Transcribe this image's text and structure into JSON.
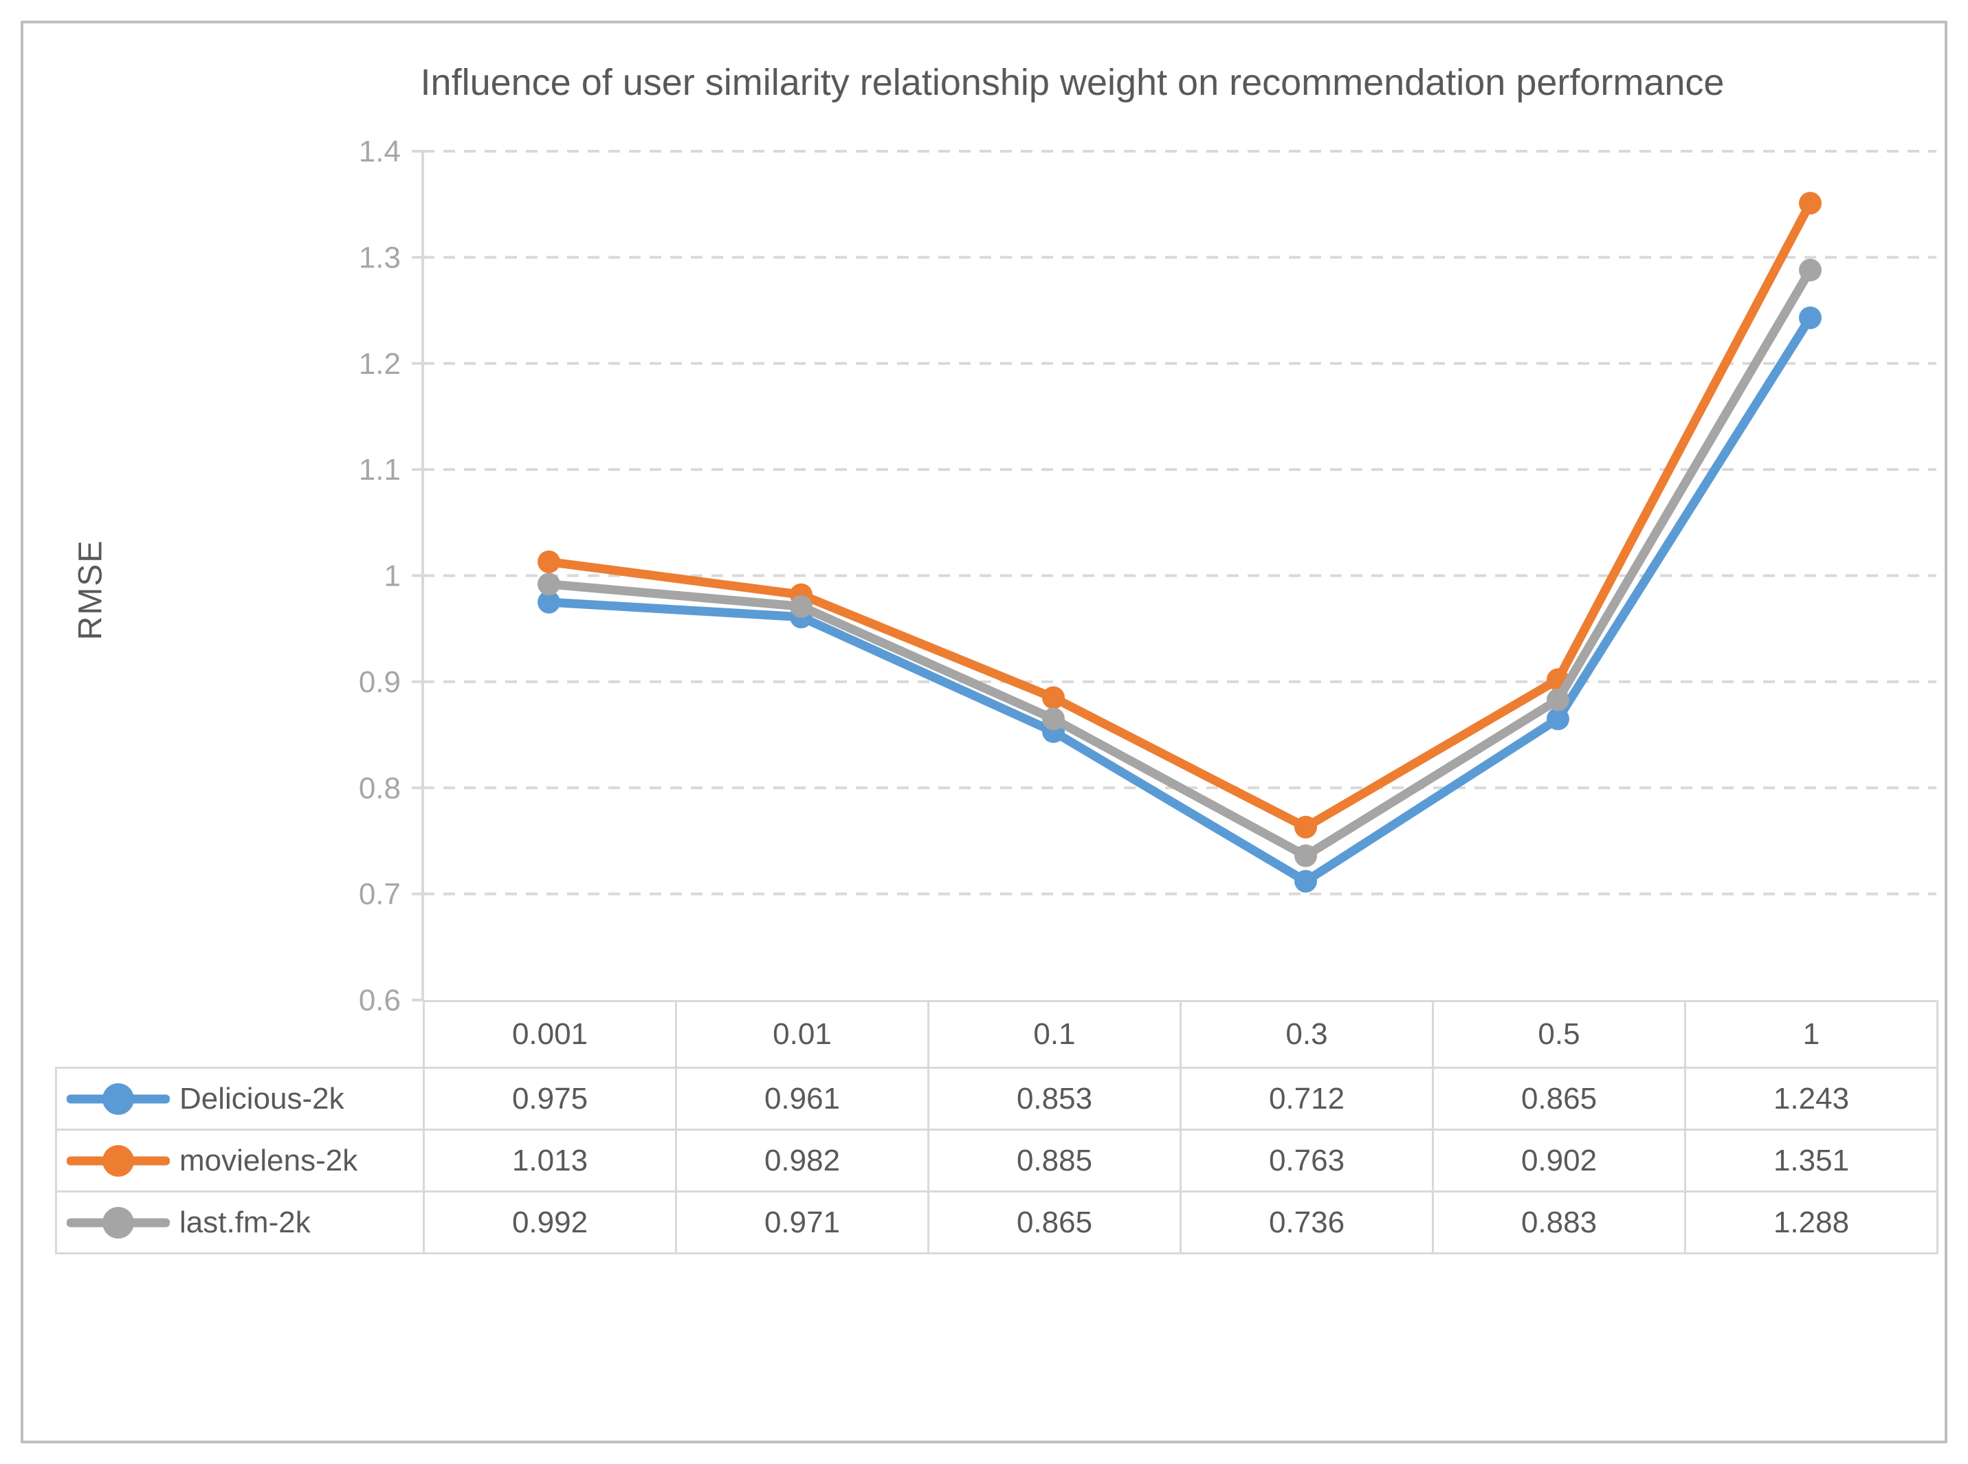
{
  "chart_data": {
    "type": "line",
    "title": "Influence of user similarity relationship weight on recommendation performance",
    "xlabel": "",
    "ylabel": "RMSE",
    "categories": [
      "0.001",
      "0.01",
      "0.1",
      "0.3",
      "0.5",
      "1"
    ],
    "series": [
      {
        "name": "Delicious-2k",
        "color": "#5B9BD5",
        "values": [
          0.975,
          0.961,
          0.853,
          0.712,
          0.865,
          1.243
        ]
      },
      {
        "name": "movielens-2k",
        "color": "#ED7D31",
        "values": [
          1.013,
          0.982,
          0.885,
          0.763,
          0.902,
          1.351
        ]
      },
      {
        "name": "last.fm-2k",
        "color": "#A5A5A5",
        "values": [
          0.992,
          0.971,
          0.865,
          0.736,
          0.883,
          1.288
        ]
      }
    ],
    "ylim": [
      0.6,
      1.4
    ],
    "yticks": [
      0.6,
      0.7,
      0.8,
      0.9,
      1,
      1.1,
      1.2,
      1.3,
      1.4
    ],
    "ytick_labels": [
      "0.6",
      "0.7",
      "0.8",
      "0.9",
      "1",
      "1.1",
      "1.2",
      "1.3",
      "1.4"
    ],
    "grid": "horizontal-dashed",
    "legend_position": "table-left-column",
    "marker": "circle",
    "colors": {
      "gridline": "#D9D9D9",
      "axis_line": "#D9D9D9",
      "tick_label": "#A6A6A6",
      "text": "#595959",
      "frame_border": "#BFBFBF",
      "table_border": "#D9D9D9"
    }
  }
}
